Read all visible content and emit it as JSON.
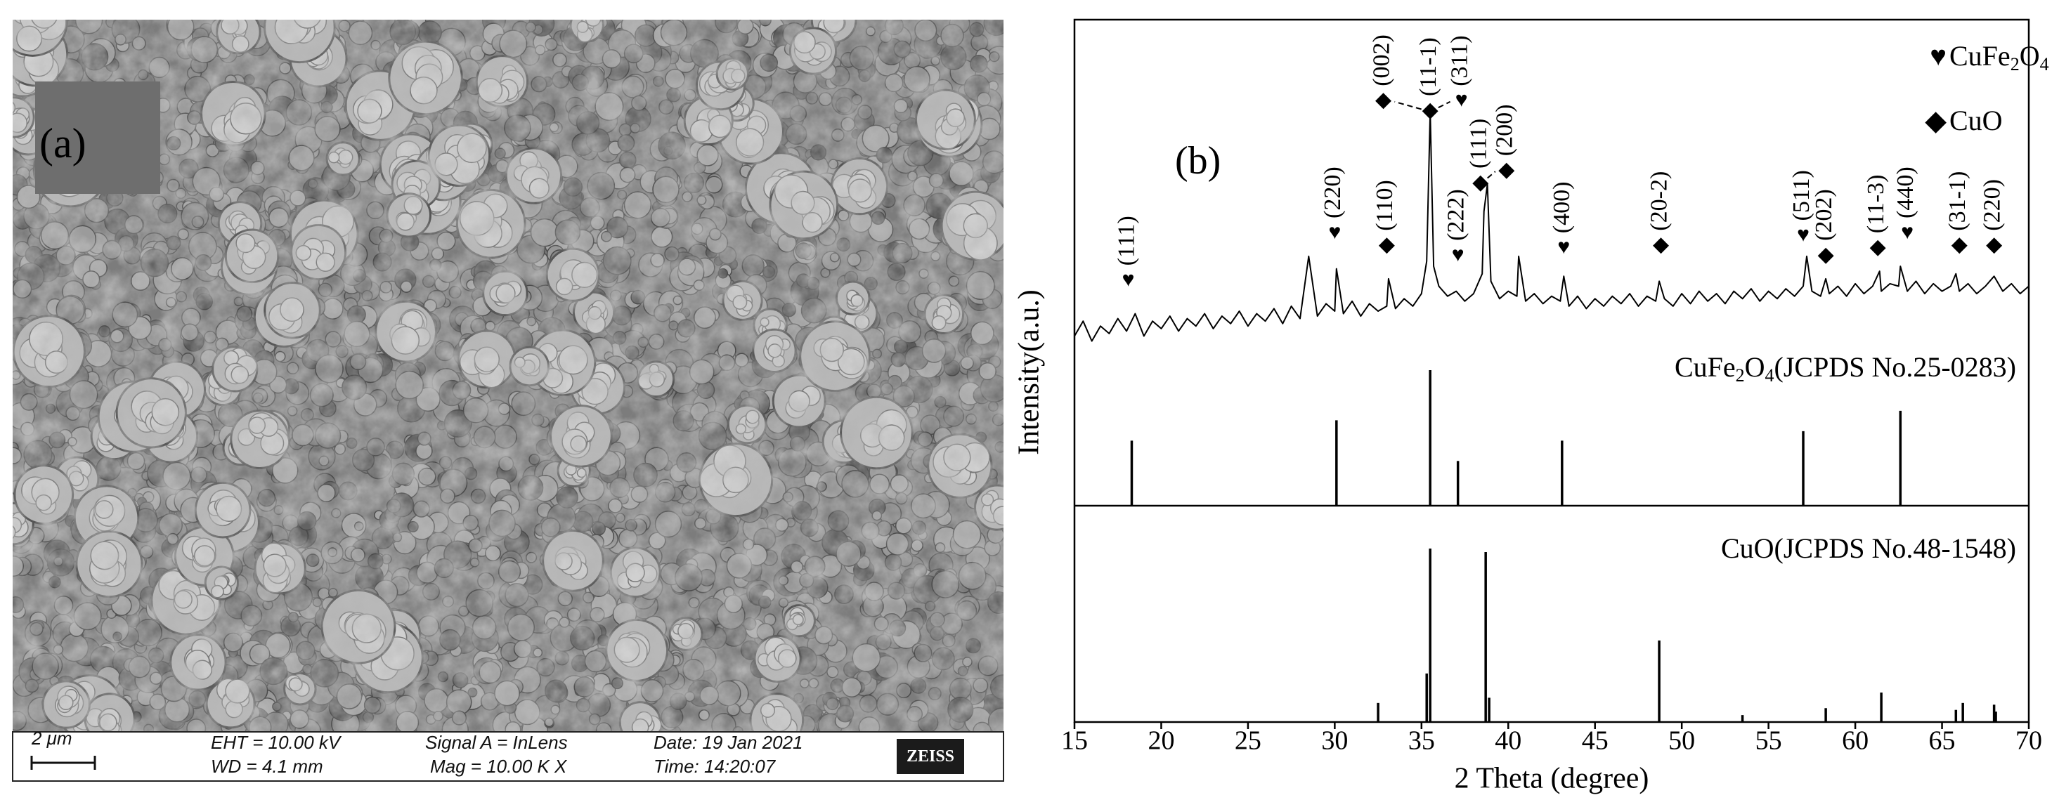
{
  "panel_a": {
    "label": "(a)",
    "scale": "2 μm",
    "eht": "EHT = 10.00 kV",
    "wd": "WD = 4.1 mm",
    "signal": "Signal A = InLens",
    "mag": "Mag =  10.00 K X",
    "date": "Date: 19 Jan 2021",
    "time": "Time: 14:20:07",
    "brand": "ZEISS"
  },
  "chart_data": {
    "type": "xrd",
    "panel_label": "(b)",
    "xlabel": "2 Theta (degree)",
    "ylabel": "Intensity(a.u.)",
    "xlim": [
      15,
      70
    ],
    "xticks": [
      15,
      20,
      25,
      30,
      35,
      40,
      45,
      50,
      55,
      60,
      65,
      70
    ],
    "ylim": [
      0,
      100
    ],
    "pattern": {
      "color": "#000000",
      "x": [
        15,
        15.5,
        16,
        16.5,
        17,
        17.5,
        18,
        18.5,
        19,
        19.5,
        20,
        20.5,
        21,
        21.5,
        22,
        22.5,
        23,
        23.5,
        24,
        24.5,
        25,
        25.5,
        26,
        26.5,
        27,
        27.5,
        28,
        28.5,
        29,
        29.5,
        30,
        30.1,
        30.5,
        31,
        31.5,
        32,
        32.5,
        33,
        33.1,
        33.5,
        34,
        34.5,
        35,
        35.3,
        35.5,
        35.7,
        36,
        36.5,
        37,
        37.5,
        38,
        38.5,
        38.6,
        38.8,
        39,
        39.5,
        40,
        40.5,
        40.6,
        41,
        41.5,
        42,
        42.5,
        43,
        43.2,
        43.5,
        44,
        44.5,
        45,
        45.5,
        46,
        46.5,
        47,
        47.5,
        48,
        48.5,
        48.7,
        49,
        49.5,
        50,
        50.5,
        51,
        51.5,
        52,
        52.5,
        53,
        53.5,
        54,
        54.5,
        55,
        55.5,
        56,
        56.5,
        57,
        57.2,
        57.5,
        58,
        58.3,
        58.5,
        59,
        59.5,
        60,
        60.5,
        61,
        61.4,
        61.5,
        62,
        62.5,
        62.6,
        63,
        63.5,
        64,
        64.5,
        65,
        65.5,
        65.8,
        66,
        66.5,
        67,
        67.5,
        68,
        68.5,
        69,
        69.5,
        70
      ],
      "values": [
        10,
        16,
        8,
        14,
        11,
        17,
        12,
        19,
        10,
        16,
        13,
        18,
        12,
        17,
        14,
        19,
        13,
        18,
        15,
        20,
        14,
        19,
        16,
        21,
        15,
        22,
        17,
        42,
        18,
        23,
        20,
        37,
        19,
        24,
        18,
        23,
        20,
        22,
        33,
        21,
        25,
        22,
        27,
        40,
        100,
        38,
        30,
        26,
        28,
        24,
        27,
        35,
        60,
        71,
        32,
        25,
        28,
        26,
        42,
        24,
        27,
        23,
        26,
        24,
        34,
        22,
        26,
        21,
        25,
        22,
        26,
        23,
        27,
        22,
        26,
        24,
        32,
        25,
        22,
        27,
        23,
        28,
        24,
        27,
        23,
        28,
        25,
        29,
        24,
        28,
        25,
        29,
        26,
        30,
        42,
        28,
        26,
        33,
        27,
        30,
        26,
        31,
        27,
        30,
        36,
        28,
        31,
        30,
        38,
        28,
        32,
        27,
        31,
        28,
        30,
        35,
        28,
        31,
        27,
        30,
        34,
        28,
        31,
        27,
        30
      ]
    },
    "legend": [
      {
        "symbol": "♥",
        "parts": [
          "CuFe",
          "2",
          "O",
          "4"
        ]
      },
      {
        "symbol": "◆",
        "parts": [
          "CuO"
        ]
      }
    ],
    "peak_labels": [
      {
        "label": "(111)",
        "symbol": "♥",
        "x": 18.1,
        "y": 32
      },
      {
        "label": "(220)",
        "symbol": "♥",
        "x": 30.0,
        "y": 51
      },
      {
        "label": "(110)",
        "symbol": "◆",
        "x": 33.0,
        "y": 46
      },
      {
        "label": "(002)",
        "symbol": "◆",
        "x": 32.8,
        "y": 104
      },
      {
        "label": "(11-1)",
        "symbol": "◆",
        "x": 35.5,
        "y": 100
      },
      {
        "label": "(311)",
        "symbol": "♥",
        "x": 37.3,
        "y": 104
      },
      {
        "label": "(222)",
        "symbol": "♥",
        "x": 37.1,
        "y": 42
      },
      {
        "label": "(111)",
        "symbol": "◆",
        "x": 38.4,
        "y": 71
      },
      {
        "label": "(200)",
        "symbol": "◆",
        "x": 39.9,
        "y": 76
      },
      {
        "label": "(400)",
        "symbol": "♥",
        "x": 43.2,
        "y": 45
      },
      {
        "label": "(20-2)",
        "symbol": "◆",
        "x": 48.8,
        "y": 46
      },
      {
        "label": "(511)",
        "symbol": "♥",
        "x": 57.0,
        "y": 50
      },
      {
        "label": "(202)",
        "symbol": "◆",
        "x": 58.3,
        "y": 42
      },
      {
        "label": "(11-3)",
        "symbol": "◆",
        "x": 61.3,
        "y": 45
      },
      {
        "label": "(440)",
        "symbol": "♥",
        "x": 63.0,
        "y": 51
      },
      {
        "label": "(31-1)",
        "symbol": "◆",
        "x": 66.0,
        "y": 46
      },
      {
        "label": "(220)",
        "symbol": "◆",
        "x": 68.0,
        "y": 46
      }
    ],
    "references": [
      {
        "parts": [
          "CuFe",
          "2",
          "O",
          "4",
          "(JCPDS No.25-0283)"
        ],
        "color": "#000000",
        "x": [
          18.3,
          30.1,
          35.5,
          37.1,
          43.1,
          57.0,
          62.6
        ],
        "values": [
          48,
          63,
          100,
          33,
          48,
          55,
          70
        ]
      },
      {
        "parts": [
          "CuO(JCPDS No.48-1548)"
        ],
        "color": "#000000",
        "x": [
          32.5,
          35.3,
          35.5,
          38.7,
          38.9,
          48.7,
          53.5,
          58.3,
          61.5,
          65.8,
          66.2,
          68.0,
          68.1
        ],
        "values": [
          11,
          28,
          100,
          98,
          14,
          47,
          4,
          8,
          17,
          7,
          11,
          10,
          6
        ]
      }
    ]
  }
}
